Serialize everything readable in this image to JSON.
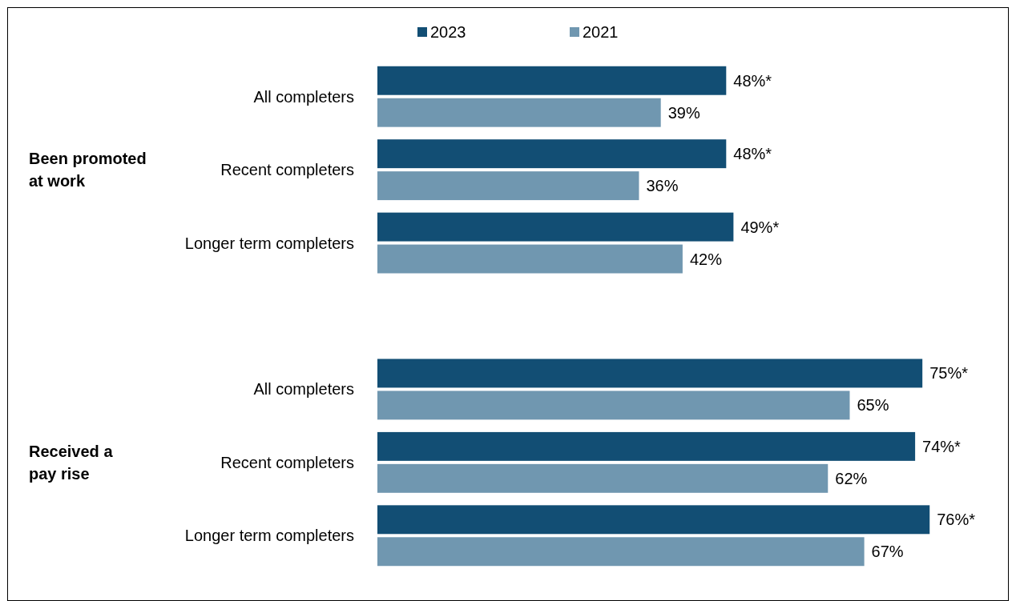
{
  "chart_data": {
    "type": "bar",
    "orientation": "horizontal",
    "categories": [
      "All completers",
      "Recent completers",
      "Longer term completers",
      null,
      "All completers",
      "Recent completers",
      "Longer term completers"
    ],
    "series": [
      {
        "name": "2023",
        "color": "#124e74",
        "values": [
          48,
          48,
          49,
          null,
          75,
          74,
          76
        ],
        "value_labels": [
          "48%*",
          "48%*",
          "49%*",
          null,
          "75%*",
          "74%*",
          "76%*"
        ]
      },
      {
        "name": "2021",
        "color": "#7097b0",
        "values": [
          39,
          36,
          42,
          null,
          65,
          62,
          67
        ],
        "value_labels": [
          "39%",
          "36%",
          "42%",
          null,
          "65%",
          "62%",
          "67%"
        ]
      }
    ],
    "xlim": [
      0,
      87
    ],
    "tick_labels": "y",
    "legend": "top",
    "annotations": [
      "Been promoted at work",
      "Received a pay rise"
    ]
  }
}
